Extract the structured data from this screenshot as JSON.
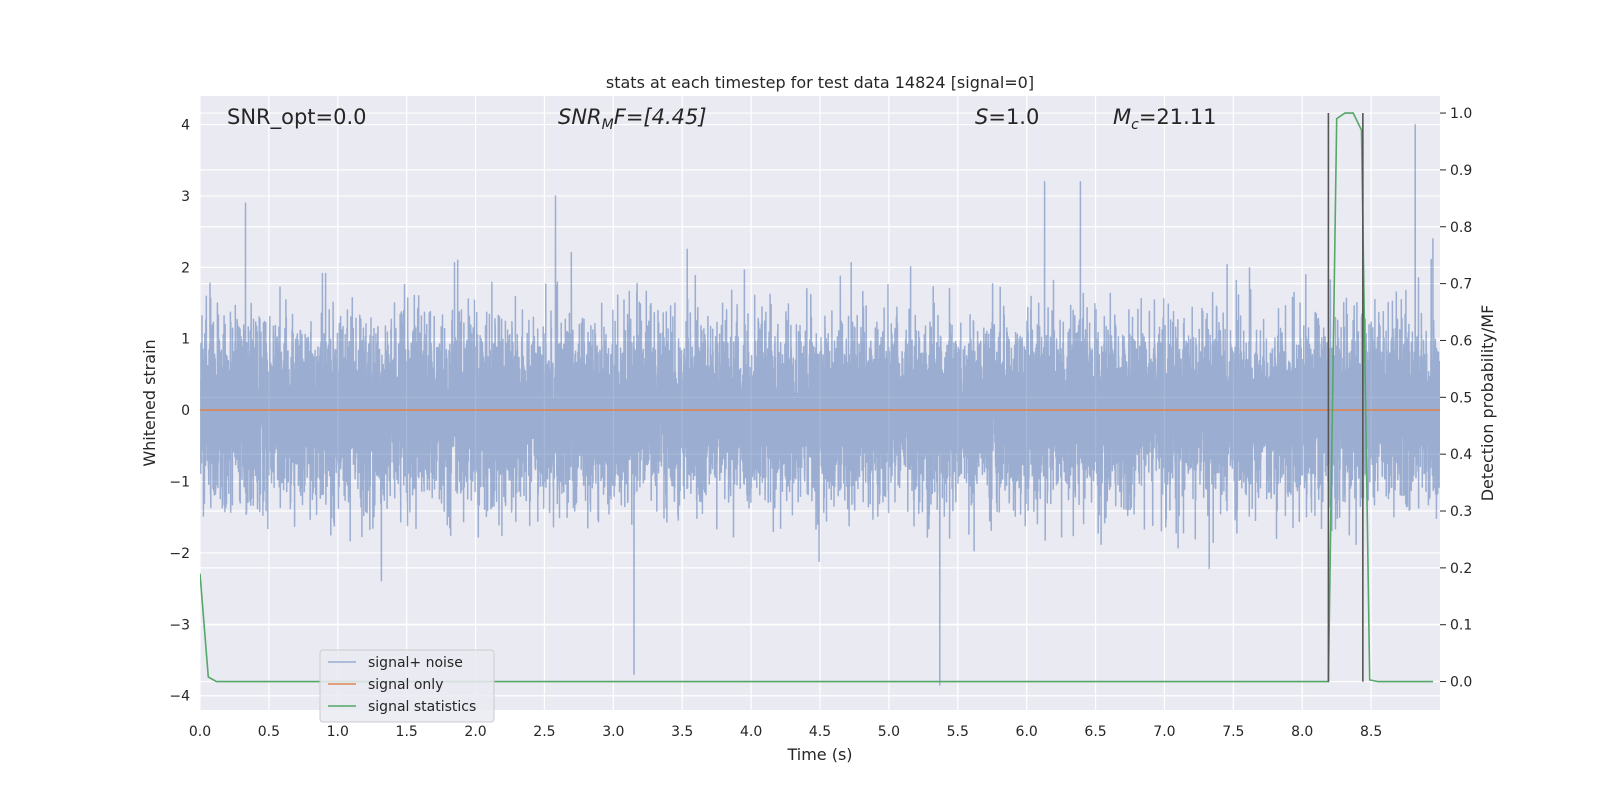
{
  "chart_data": {
    "type": "line",
    "title": "stats at each timestep for test data 14824 [signal=0]",
    "xlabel": "Time (s)",
    "ylabel": "Whitened strain",
    "ylabel_right": "Detection probability/MF",
    "xlim": [
      0.0,
      9.0
    ],
    "ylim": [
      -4.2,
      4.4
    ],
    "ylim_right": [
      -0.05,
      1.03
    ],
    "x_ticks": [
      0.0,
      0.5,
      1.0,
      1.5,
      2.0,
      2.5,
      3.0,
      3.5,
      4.0,
      4.5,
      5.0,
      5.5,
      6.0,
      6.5,
      7.0,
      7.5,
      8.0,
      8.5
    ],
    "x_tick_labels": [
      "0.0",
      "0.5",
      "1.0",
      "1.5",
      "2.0",
      "2.5",
      "3.0",
      "3.5",
      "4.0",
      "4.5",
      "5.0",
      "5.5",
      "6.0",
      "6.5",
      "7.0",
      "7.5",
      "8.0",
      "8.5"
    ],
    "y_ticks": [
      -4,
      -3,
      -2,
      -1,
      0,
      1,
      2,
      3,
      4
    ],
    "y_tick_labels": [
      "−4",
      "−3",
      "−2",
      "−1",
      "0",
      "1",
      "2",
      "3",
      "4"
    ],
    "y_ticks_right": [
      0.0,
      0.1,
      0.2,
      0.3,
      0.4,
      0.5,
      0.6,
      0.7,
      0.8,
      0.9,
      1.0
    ],
    "y_tick_labels_right": [
      "0.0",
      "0.1",
      "0.2",
      "0.3",
      "0.4",
      "0.5",
      "0.6",
      "0.7",
      "0.8",
      "0.9",
      "1.0"
    ],
    "grid": true,
    "legend_placement": "lower-left",
    "annotations": [
      {
        "text": "SNR_opt=0.0",
        "x": 0.2,
        "y": 4.1
      },
      {
        "text": "SNRMF=[4.45]",
        "x": 2.6,
        "y": 4.1
      },
      {
        "text": "S=1.0",
        "x": 5.6,
        "y": 4.1
      },
      {
        "text": "Mc=21.11",
        "x": 6.6,
        "y": 4.1
      }
    ],
    "annotation_parts": {
      "snr_opt": "SNR_opt=0.0",
      "snrmf_a": "SNR",
      "snrmf_sub": "M",
      "snrmf_b": "F=[4.45]",
      "s_sym": "S",
      "s_val": "=1.0",
      "mc_sym": "M",
      "mc_sub": "c",
      "mc_val": "=21.11"
    },
    "series": [
      {
        "name": "signal+ noise",
        "color": "#4c72b0",
        "alpha": 0.5,
        "kind": "noise",
        "x_range": [
          0.0,
          9.0
        ],
        "samples": 14400,
        "std": 0.6,
        "max": 4.0,
        "min": -3.85,
        "peaks": [
          [
            0.33,
            2.9
          ],
          [
            2.58,
            3.0
          ],
          [
            3.15,
            -3.7
          ],
          [
            5.37,
            -3.85
          ],
          [
            6.13,
            3.2
          ],
          [
            6.39,
            3.2
          ],
          [
            8.82,
            4.0
          ],
          [
            1.87,
            2.1
          ]
        ]
      },
      {
        "name": "signal only",
        "color": "#dd8452",
        "kind": "line",
        "x": [
          0.0,
          9.0
        ],
        "y": [
          0.0,
          0.0
        ]
      },
      {
        "name": "signal statistics",
        "color": "#55a868",
        "kind": "line",
        "axis": "right",
        "x": [
          0.0,
          0.06,
          0.12,
          0.5,
          1.0,
          2.0,
          3.0,
          4.0,
          5.0,
          6.0,
          7.0,
          8.0,
          8.19,
          8.25,
          8.31,
          8.37,
          8.43,
          8.49,
          8.55,
          8.95
        ],
        "y": [
          0.19,
          0.008,
          0.0,
          0.0,
          0.0,
          0.0,
          0.0,
          0.0,
          0.0,
          0.0,
          0.0,
          0.0,
          0.0,
          0.99,
          1.0,
          1.0,
          0.97,
          0.003,
          0.0,
          0.0
        ]
      }
    ],
    "vertical_lines": [
      {
        "x": 8.19,
        "color": "#555555"
      },
      {
        "x": 8.44,
        "color": "#555555"
      }
    ]
  }
}
